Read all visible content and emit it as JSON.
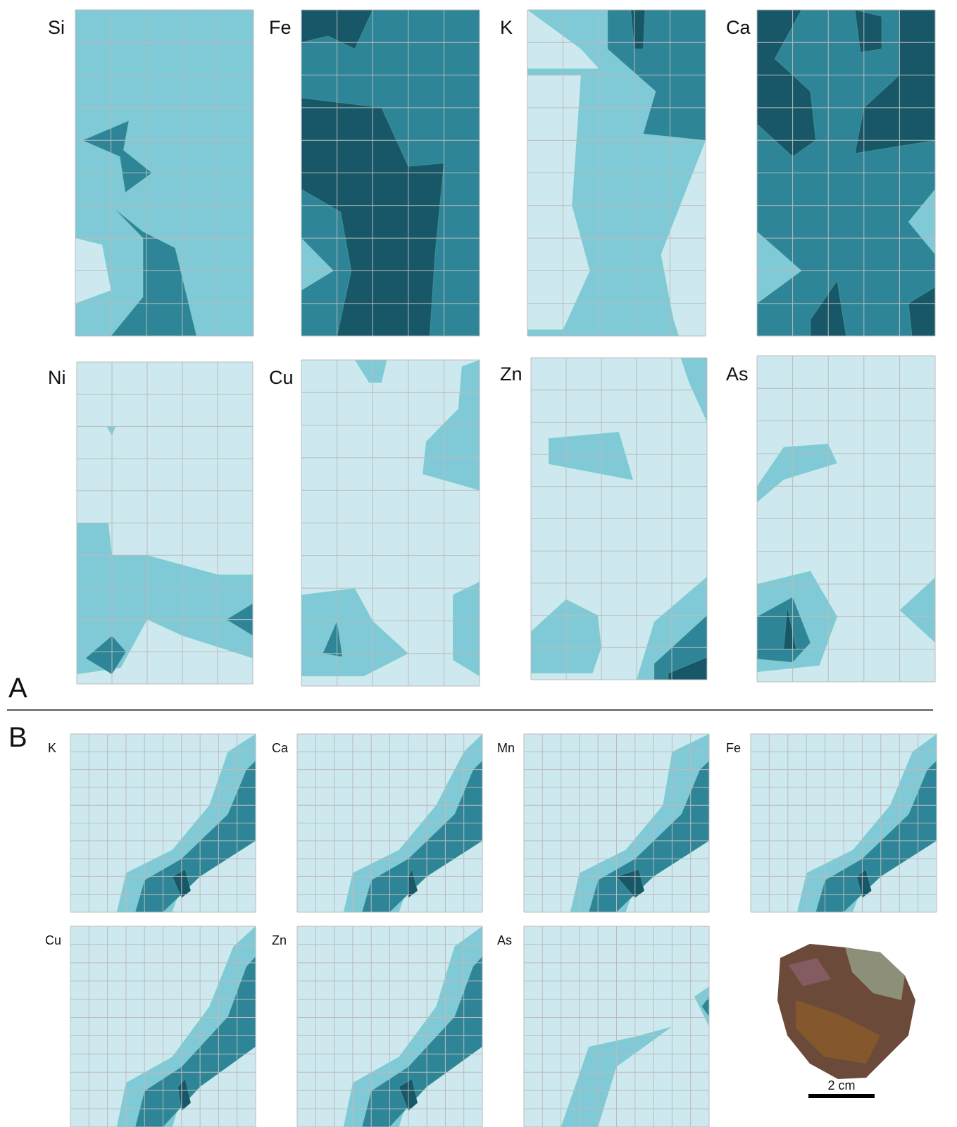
{
  "panel_a": {
    "label": "A",
    "elements": [
      "Si",
      "Fe",
      "K",
      "Ca",
      "Ni",
      "Cu",
      "Zn",
      "As"
    ]
  },
  "panel_b": {
    "label": "B",
    "elements": [
      "K",
      "Ca",
      "Mn",
      "Fe",
      "Cu",
      "Zn",
      "As"
    ]
  },
  "scale_bar": "2 cm"
}
